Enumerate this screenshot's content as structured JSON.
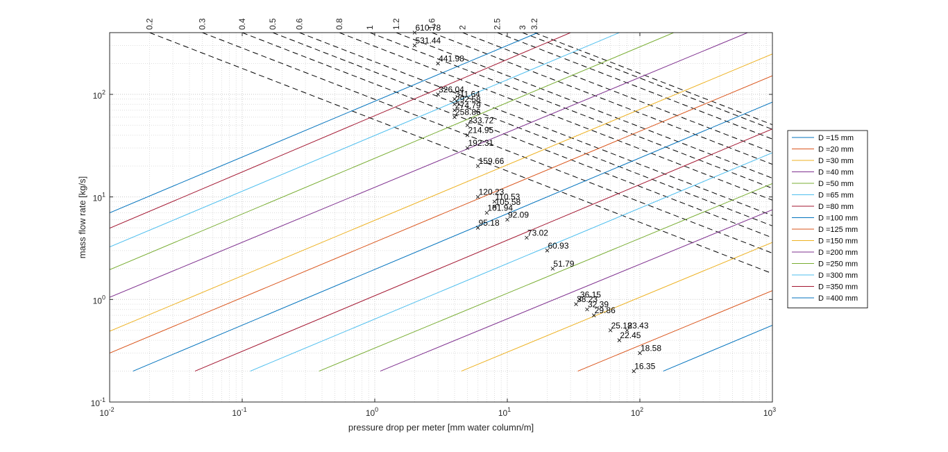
{
  "chart_data": {
    "type": "line",
    "xlabel": "pressure drop per meter [mm water column/m]",
    "ylabel": "mass flow rate [kg/s]",
    "xscale": "log",
    "yscale": "log",
    "xlim": [
      0.01,
      1000
    ],
    "ylim": [
      0.1,
      400
    ],
    "grid": "on (major and minor, dotted)",
    "legend_placement": "outside-right",
    "x_tick_labels": [
      "10^-2",
      "10^-1",
      "10^0",
      "10^1",
      "10^2",
      "10^3"
    ],
    "y_tick_labels": [
      "10^-1",
      "10^0",
      "10^1",
      "10^2"
    ],
    "series": [
      {
        "name": "D =15 mm",
        "color": "#0072BD",
        "points": [
          [
            150,
            0.2
          ],
          [
            1000,
            0.56
          ]
        ]
      },
      {
        "name": "D =20 mm",
        "color": "#D95319",
        "points": [
          [
            34,
            0.2
          ],
          [
            1000,
            1.22
          ]
        ]
      },
      {
        "name": "D =30 mm",
        "color": "#EDB120",
        "points": [
          [
            4.5,
            0.2
          ],
          [
            1000,
            3.6
          ]
        ]
      },
      {
        "name": "D =40 mm",
        "color": "#7E2F8E",
        "points": [
          [
            1.1,
            0.2
          ],
          [
            1000,
            7.5
          ]
        ]
      },
      {
        "name": "D =50 mm",
        "color": "#77AC30",
        "points": [
          [
            0.38,
            0.2
          ],
          [
            1000,
            13.5
          ]
        ]
      },
      {
        "name": "D =65 mm",
        "color": "#4DBEEE",
        "points": [
          [
            0.115,
            0.2
          ],
          [
            1000,
            27
          ]
        ]
      },
      {
        "name": "D =80 mm",
        "color": "#A2142F",
        "points": [
          [
            0.044,
            0.2
          ],
          [
            1000,
            46
          ]
        ]
      },
      {
        "name": "D =100 mm",
        "color": "#0072BD",
        "points": [
          [
            0.015,
            0.2
          ],
          [
            1000,
            84
          ]
        ]
      },
      {
        "name": "D =125 mm",
        "color": "#D95319",
        "points": [
          [
            0.01,
            0.3
          ],
          [
            1000,
            152
          ]
        ]
      },
      {
        "name": "D =150 mm",
        "color": "#EDB120",
        "points": [
          [
            0.01,
            0.49
          ],
          [
            1000,
            248
          ]
        ]
      },
      {
        "name": "D =200 mm",
        "color": "#7E2F8E",
        "points": [
          [
            0.01,
            1.05
          ],
          [
            650,
            400
          ]
        ]
      },
      {
        "name": "D =250 mm",
        "color": "#77AC30",
        "points": [
          [
            0.01,
            1.95
          ],
          [
            180,
            400
          ]
        ]
      },
      {
        "name": "D =300 mm",
        "color": "#4DBEEE",
        "points": [
          [
            0.01,
            3.25
          ],
          [
            70,
            400
          ]
        ]
      },
      {
        "name": "D =350 mm",
        "color": "#A2142F",
        "points": [
          [
            0.01,
            4.95
          ],
          [
            30,
            400
          ]
        ]
      },
      {
        "name": "D =400 mm",
        "color": "#0072BD",
        "points": [
          [
            0.01,
            7.0
          ],
          [
            17,
            400
          ]
        ]
      }
    ],
    "velocity_lines": [
      {
        "label": "0.2",
        "x_at_top": 0.02
      },
      {
        "label": "0.3",
        "x_at_top": 0.05
      },
      {
        "label": "0.4",
        "x_at_top": 0.1
      },
      {
        "label": "0.5",
        "x_at_top": 0.17
      },
      {
        "label": "0.6",
        "x_at_top": 0.27
      },
      {
        "label": "0.8",
        "x_at_top": 0.54
      },
      {
        "label": "1",
        "x_at_top": 0.92
      },
      {
        "label": "1.2",
        "x_at_top": 1.45
      },
      {
        "label": "1.6",
        "x_at_top": 2.7
      },
      {
        "label": "2",
        "x_at_top": 4.6
      },
      {
        "label": "2.5",
        "x_at_top": 8.4
      },
      {
        "label": "3",
        "x_at_top": 13
      },
      {
        "label": "3.2",
        "x_at_top": 16
      }
    ],
    "annotated_points": [
      {
        "label": "610.78",
        "x": 2.0,
        "y": 400
      },
      {
        "label": "531.44",
        "x": 2.0,
        "y": 300
      },
      {
        "label": "441.98",
        "x": 3.0,
        "y": 200
      },
      {
        "label": "326.04",
        "x": 3.0,
        "y": 100
      },
      {
        "label": "311.64",
        "x": 4.0,
        "y": 90
      },
      {
        "label": "292.58",
        "x": 4.0,
        "y": 80
      },
      {
        "label": "274.79",
        "x": 4.0,
        "y": 70
      },
      {
        "label": "258.86",
        "x": 4.0,
        "y": 60
      },
      {
        "label": "233.72",
        "x": 5.0,
        "y": 50
      },
      {
        "label": "214.95",
        "x": 5.0,
        "y": 40
      },
      {
        "label": "192.31",
        "x": 5.0,
        "y": 30
      },
      {
        "label": "159.66",
        "x": 6.0,
        "y": 20
      },
      {
        "label": "120.23",
        "x": 6.0,
        "y": 10
      },
      {
        "label": "110.53",
        "x": 8.0,
        "y": 9
      },
      {
        "label": "105.58",
        "x": 8.0,
        "y": 8
      },
      {
        "label": "101.94",
        "x": 7.0,
        "y": 7
      },
      {
        "label": "92.09",
        "x": 10.0,
        "y": 6
      },
      {
        "label": "95.18",
        "x": 6.0,
        "y": 5
      },
      {
        "label": "73.02",
        "x": 14.0,
        "y": 4
      },
      {
        "label": "60.93",
        "x": 20.0,
        "y": 3
      },
      {
        "label": "51.79",
        "x": 22.0,
        "y": 2
      },
      {
        "label": "36.15",
        "x": 35.0,
        "y": 1.0
      },
      {
        "label": "38.23",
        "x": 33.0,
        "y": 0.9
      },
      {
        "label": "32.39",
        "x": 40.0,
        "y": 0.8
      },
      {
        "label": "29.86",
        "x": 45.0,
        "y": 0.7
      },
      {
        "label": "25.18",
        "x": 60.0,
        "y": 0.5
      },
      {
        "label": "23.43",
        "x": 80.0,
        "y": 0.5
      },
      {
        "label": "22.45",
        "x": 70.0,
        "y": 0.4
      },
      {
        "label": "18.58",
        "x": 100.0,
        "y": 0.3
      },
      {
        "label": "16.35",
        "x": 90.0,
        "y": 0.2
      }
    ]
  }
}
